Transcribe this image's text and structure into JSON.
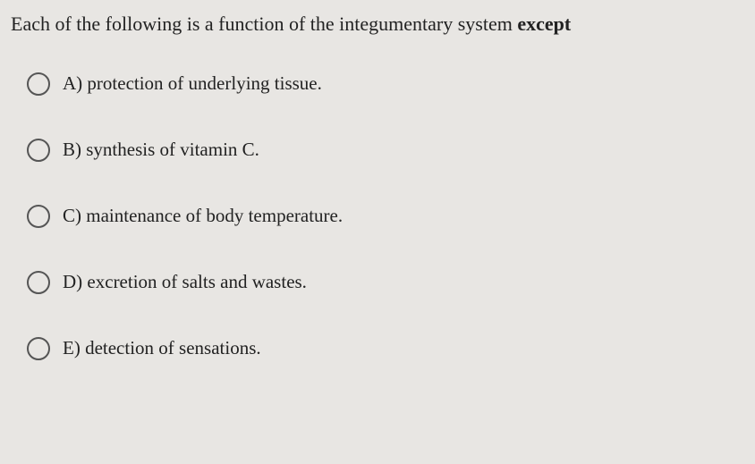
{
  "question": {
    "prefix": "Each of the following is a function of the integumentary system ",
    "bold": "except"
  },
  "options": [
    {
      "label": "A)",
      "text": "protection of underlying tissue."
    },
    {
      "label": "B)",
      "text": "synthesis of vitamin C."
    },
    {
      "label": "C)",
      "text": "maintenance of body temperature."
    },
    {
      "label": "D)",
      "text": "excretion of salts and wastes."
    },
    {
      "label": "E)",
      "text": "detection of sensations."
    }
  ],
  "style": {
    "background_color": "#e8e6e3",
    "text_color": "#1a1a1a",
    "radio_border_color": "#555555",
    "question_fontsize": 22,
    "option_fontsize": 21,
    "radio_size": 26,
    "option_spacing": 48
  }
}
